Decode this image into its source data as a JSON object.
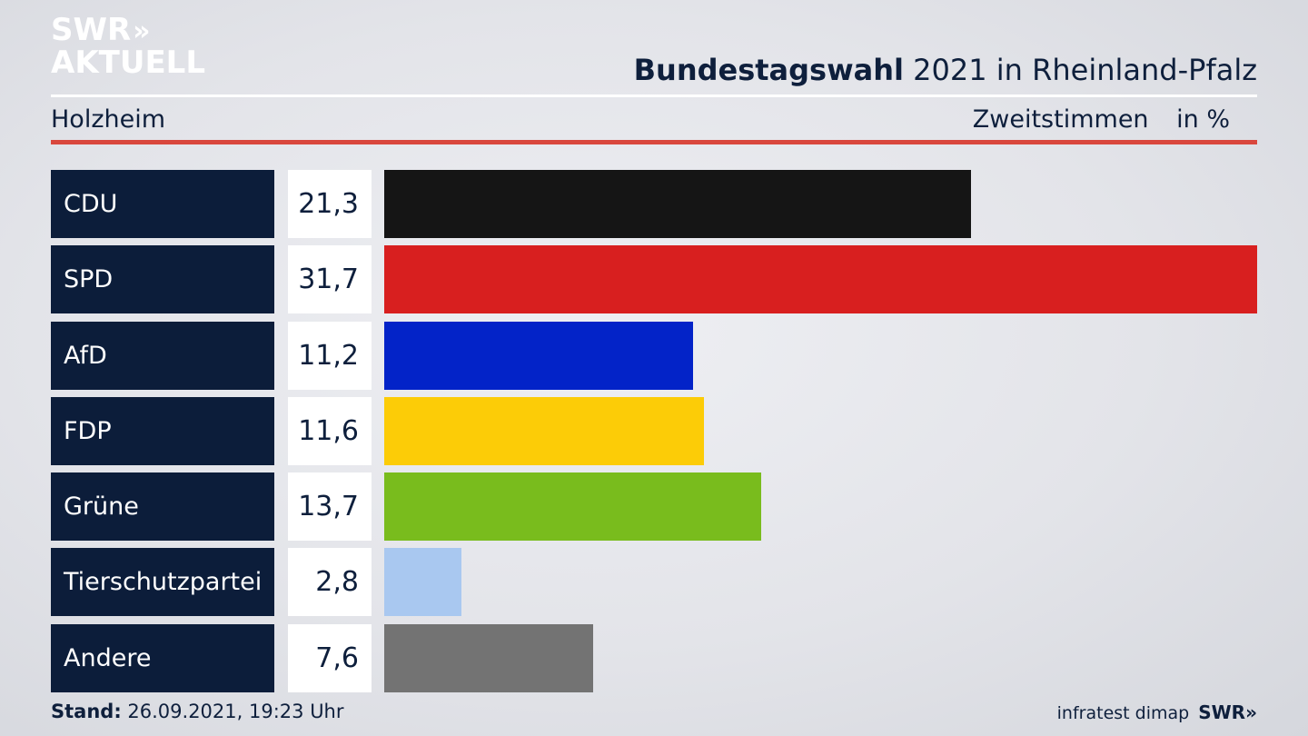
{
  "brand": {
    "logo_line1": "SWR",
    "logo_chevrons": "»",
    "logo_line2": "AKTUELL"
  },
  "header": {
    "title_bold": "Bundestagswahl",
    "title_rest": "2021 in Rheinland-Pfalz",
    "region": "Holzheim",
    "metric": "Zweitstimmen",
    "unit": "in %"
  },
  "footer": {
    "stand_label": "Stand:",
    "stand_value": "26.09.2021, 19:23 Uhr",
    "source": "infratest dimap",
    "brand": "SWR»"
  },
  "colors": {
    "accent_red": "#d9473d",
    "label_bg": "#0c1d3a"
  },
  "chart_data": {
    "type": "bar",
    "orientation": "horizontal",
    "title": "Bundestagswahl 2021 in Rheinland-Pfalz",
    "subtitle": "Holzheim",
    "xlabel": "Zweitstimmen",
    "ylabel": "",
    "unit": "in %",
    "xlim": [
      0,
      31.7
    ],
    "grid": false,
    "categories": [
      "CDU",
      "SPD",
      "AfD",
      "FDP",
      "Grüne",
      "Tierschutzpartei",
      "Andere"
    ],
    "values": [
      21.3,
      31.7,
      11.2,
      11.6,
      13.7,
      2.8,
      7.6
    ],
    "value_labels": [
      "21,3",
      "31,7",
      "11,2",
      "11,6",
      "13,7",
      "2,8",
      "7,6"
    ],
    "bar_colors": [
      "#151515",
      "#d81f1f",
      "#0323c8",
      "#fccc07",
      "#79bc1d",
      "#a9c8f0",
      "#737373"
    ]
  }
}
